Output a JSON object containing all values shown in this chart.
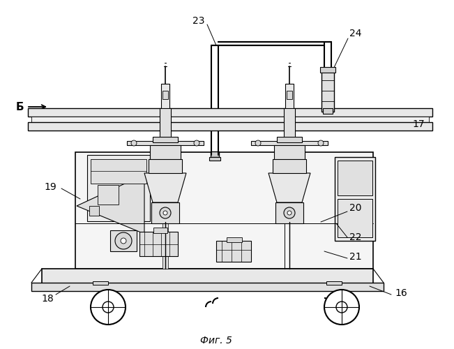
{
  "title": "Фиг. 5",
  "bg_color": "#ffffff",
  "line_color": "#000000",
  "label_color": "#000000",
  "fig_width": 6.51,
  "fig_height": 5.0,
  "dpi": 100
}
